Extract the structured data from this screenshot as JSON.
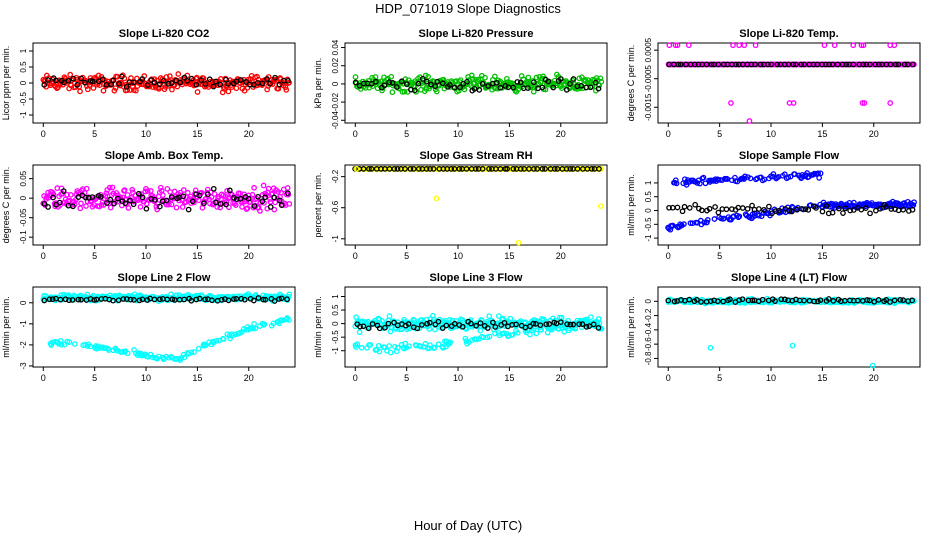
{
  "figure": {
    "title": "HDP_071019  Slope Diagnostics",
    "xlabel": "Hour of Day (UTC)"
  },
  "colors": {
    "red": "#ff0000",
    "green": "#00c000",
    "magenta": "#ff00ff",
    "yellow": "#ffff00",
    "blue": "#0000ff",
    "cyan": "#00ffff",
    "black": "#000000"
  },
  "chart_data": [
    {
      "type": "scatter",
      "title": "Slope Li-820 CO2",
      "ylabel": "Licor ppm per min.",
      "xlim": [
        -1,
        24.5
      ],
      "ylim": [
        -1.25,
        1.25
      ],
      "xticks": [
        0,
        5,
        10,
        15,
        20
      ],
      "yticks": [
        -1.0,
        -0.5,
        0.0,
        0.5,
        1.0
      ],
      "series": [
        {
          "name": "main",
          "color": "red",
          "values_pattern": "noise",
          "center": 0.0,
          "spread": 0.35
        },
        {
          "name": "reference",
          "color": "black",
          "values_pattern": "noise",
          "center": 0.05,
          "spread": 0.2
        }
      ]
    },
    {
      "type": "scatter",
      "title": "Slope Li-820 Pressure",
      "ylabel": "kPa per min.",
      "xlim": [
        -1,
        24.5
      ],
      "ylim": [
        -0.043,
        0.045
      ],
      "xticks": [
        0,
        5,
        10,
        15,
        20
      ],
      "yticks": [
        -0.04,
        -0.02,
        0.0,
        0.02,
        0.04
      ],
      "series": [
        {
          "name": "main",
          "color": "green",
          "values_pattern": "noise",
          "center": 0.0,
          "spread": 0.012
        },
        {
          "name": "reference",
          "color": "black",
          "values_pattern": "noise",
          "center": -0.002,
          "spread": 0.01
        }
      ]
    },
    {
      "type": "scatter",
      "title": "Slope Li-820 Temp.",
      "ylabel": "degrees C per min.",
      "xlim": [
        -1,
        24.5
      ],
      "ylim": [
        -0.00205,
        0.00075
      ],
      "xticks": [
        0,
        5,
        10,
        15,
        20
      ],
      "yticks": [
        -0.0015,
        -0.0005,
        0.0005
      ],
      "series": [
        {
          "name": "main",
          "color": "magenta",
          "values_pattern": "flat",
          "center": 0.0,
          "spread": 0.0
        },
        {
          "name": "reference",
          "color": "black",
          "values_pattern": "flat",
          "center": 0.0,
          "spread": 0.0
        }
      ],
      "outliers": [
        {
          "x": 0.1,
          "y": 0.00067
        },
        {
          "x": 0.7,
          "y": 0.00067
        },
        {
          "x": 0.9,
          "y": 0.00067
        },
        {
          "x": 2.0,
          "y": 0.00067
        },
        {
          "x": 6.3,
          "y": 0.00067
        },
        {
          "x": 6.9,
          "y": 0.00067
        },
        {
          "x": 7.4,
          "y": 0.00067
        },
        {
          "x": 8.5,
          "y": 0.00067
        },
        {
          "x": 15.2,
          "y": 0.00067
        },
        {
          "x": 16.2,
          "y": 0.00067
        },
        {
          "x": 18.0,
          "y": 0.00067
        },
        {
          "x": 18.8,
          "y": 0.00067
        },
        {
          "x": 19.0,
          "y": 0.00067
        },
        {
          "x": 21.6,
          "y": 0.00067
        },
        {
          "x": 22.0,
          "y": 0.00067
        },
        {
          "x": 6.1,
          "y": -0.00135
        },
        {
          "x": 11.8,
          "y": -0.00135
        },
        {
          "x": 12.2,
          "y": -0.00135
        },
        {
          "x": 18.9,
          "y": -0.00135
        },
        {
          "x": 19.1,
          "y": -0.00135
        },
        {
          "x": 21.6,
          "y": -0.00135
        },
        {
          "x": 7.9,
          "y": -0.00198
        }
      ]
    },
    {
      "type": "scatter",
      "title": "Slope Amb. Box Temp.",
      "ylabel": "degrees C per min.",
      "xlim": [
        -1,
        24.5
      ],
      "ylim": [
        -0.12,
        0.085
      ],
      "xticks": [
        0,
        5,
        10,
        15,
        20
      ],
      "yticks": [
        -0.1,
        -0.05,
        0.0,
        0.05
      ],
      "series": [
        {
          "name": "main",
          "color": "magenta",
          "values_pattern": "noise",
          "center": 0.0,
          "spread": 0.04
        },
        {
          "name": "reference",
          "color": "black",
          "values_pattern": "noise",
          "center": -0.005,
          "spread": 0.035
        }
      ]
    },
    {
      "type": "scatter",
      "title": "Slope Gas Stream RH",
      "ylabel": "percent per min.",
      "xlim": [
        -1,
        24.5
      ],
      "ylim": [
        -1.08,
        -0.05
      ],
      "xticks": [
        0,
        5,
        10,
        15,
        20
      ],
      "yticks": [
        -1.0,
        -0.6,
        -0.2
      ],
      "series": [
        {
          "name": "main",
          "color": "yellow",
          "values_pattern": "flat",
          "center": -0.1,
          "spread": 0.0
        },
        {
          "name": "reference",
          "color": "black",
          "values_pattern": "flat",
          "center": -0.1,
          "spread": 0.0
        }
      ],
      "outliers": [
        {
          "x": 0.1,
          "y": -0.1
        },
        {
          "x": 7.9,
          "y": -0.48
        },
        {
          "x": 15.9,
          "y": -1.05
        },
        {
          "x": 23.9,
          "y": -0.58
        }
      ]
    },
    {
      "type": "scatter",
      "title": "Slope Sample Flow",
      "ylabel": "ml/min per min.",
      "xlim": [
        -1,
        24.5
      ],
      "ylim": [
        -1.25,
        1.65
      ],
      "xticks": [
        0,
        5,
        10,
        15,
        20
      ],
      "yticks": [
        -1.0,
        -0.5,
        0.0,
        0.5,
        1.0
      ],
      "series": [
        {
          "name": "main",
          "color": "blue",
          "values_pattern": "two-branch",
          "upper": [
            1.0,
            1.1,
            1.3
          ],
          "lower": [
            -0.6,
            -0.2,
            0.2
          ],
          "after15": 0.2,
          "spread": 0.15
        },
        {
          "name": "reference",
          "color": "black",
          "values_pattern": "noise",
          "center": 0.05,
          "spread": 0.2
        }
      ]
    },
    {
      "type": "scatter",
      "title": "Slope Line 2 Flow",
      "ylabel": "ml/min per min.",
      "xlim": [
        -1,
        24.5
      ],
      "ylim": [
        -3.05,
        0.75
      ],
      "xticks": [
        0,
        5,
        10,
        15,
        20
      ],
      "yticks": [
        -3,
        -2,
        -1,
        0
      ],
      "series": [
        {
          "name": "upper",
          "color": "cyan",
          "values_pattern": "noise",
          "center": 0.25,
          "spread": 0.2
        },
        {
          "name": "lower",
          "color": "cyan",
          "values_pattern": "trend",
          "points": [
            [
              0,
              -1.8
            ],
            [
              5,
              -2.1
            ],
            [
              10,
              -2.5
            ],
            [
              13,
              -2.7
            ],
            [
              16,
              -2.0
            ],
            [
              20,
              -1.2
            ],
            [
              24,
              -0.8
            ]
          ],
          "spread": 0.18
        },
        {
          "name": "reference",
          "color": "black",
          "values_pattern": "noise",
          "center": 0.15,
          "spread": 0.1
        }
      ]
    },
    {
      "type": "scatter",
      "title": "Slope Line 3 Flow",
      "ylabel": "ml/min per min.",
      "xlim": [
        -1,
        24.5
      ],
      "ylim": [
        -1.6,
        1.35
      ],
      "xticks": [
        0,
        5,
        10,
        15,
        20
      ],
      "yticks": [
        -1.0,
        -0.5,
        0.0,
        0.5,
        1.0
      ],
      "series": [
        {
          "name": "main",
          "color": "cyan",
          "values_pattern": "noise",
          "center": 0.0,
          "spread": 0.35
        },
        {
          "name": "low",
          "color": "cyan",
          "values_pattern": "trend",
          "points": [
            [
              0,
              -0.9
            ],
            [
              4,
              -0.9
            ],
            [
              8,
              -0.8
            ],
            [
              12,
              -0.6
            ],
            [
              16,
              -0.3
            ],
            [
              20,
              -0.1
            ],
            [
              24,
              0.0
            ]
          ],
          "spread": 0.25
        },
        {
          "name": "reference",
          "color": "black",
          "values_pattern": "noise",
          "center": -0.05,
          "spread": 0.2
        }
      ]
    },
    {
      "type": "scatter",
      "title": "Slope Line 4 (LT) Flow",
      "ylabel": "ml/min per min.",
      "xlim": [
        -1,
        24.5
      ],
      "ylim": [
        -0.92,
        0.2
      ],
      "xticks": [
        0,
        5,
        10,
        15,
        20
      ],
      "yticks": [
        -0.8,
        -0.6,
        -0.4,
        -0.2,
        0.0
      ],
      "series": [
        {
          "name": "main",
          "color": "cyan",
          "values_pattern": "noise",
          "center": 0.0,
          "spread": 0.04
        },
        {
          "name": "reference",
          "color": "black",
          "values_pattern": "noise",
          "center": 0.01,
          "spread": 0.035
        }
      ],
      "outliers": [
        {
          "x": 4.1,
          "y": -0.65
        },
        {
          "x": 12.1,
          "y": -0.62
        },
        {
          "x": 19.9,
          "y": -0.9
        }
      ]
    }
  ]
}
